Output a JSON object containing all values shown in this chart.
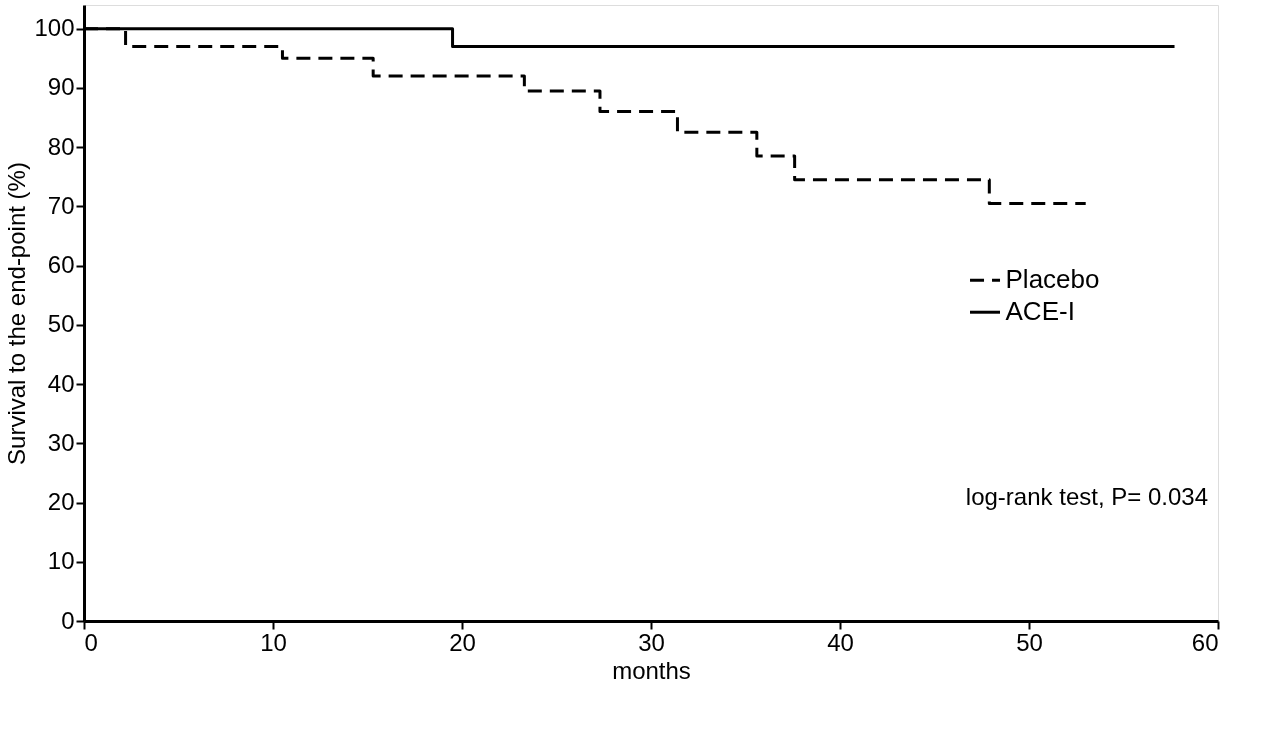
{
  "chart_data": {
    "type": "step",
    "xlabel": "months",
    "ylabel": "Survival to the end-point (%)",
    "xlim": [
      0,
      60
    ],
    "ylim": [
      0,
      104
    ],
    "xticks": [
      0,
      10,
      20,
      30,
      40,
      50,
      60
    ],
    "yticks": [
      0,
      10,
      20,
      30,
      40,
      50,
      60,
      70,
      80,
      90,
      100
    ],
    "grid": false,
    "legend": "right",
    "marker": "none",
    "series": [
      {
        "name": "Placebo",
        "color": "#000000",
        "line_style": "dashed",
        "x": [
          0,
          2.2,
          10.5,
          15.3,
          23.3,
          27.3,
          31.4,
          35.6,
          37.6,
          47.9,
          53
        ],
        "values": [
          100,
          97,
          95,
          92,
          89.5,
          86,
          82.5,
          78.5,
          74.5,
          70.5,
          70.5
        ]
      },
      {
        "name": "ACE-I",
        "color": "#000000",
        "line_style": "solid",
        "x": [
          0,
          19.5,
          57.7
        ],
        "values": [
          100,
          97,
          97
        ]
      }
    ],
    "annotations": [
      "log-rank test,  P= 0.034"
    ]
  }
}
